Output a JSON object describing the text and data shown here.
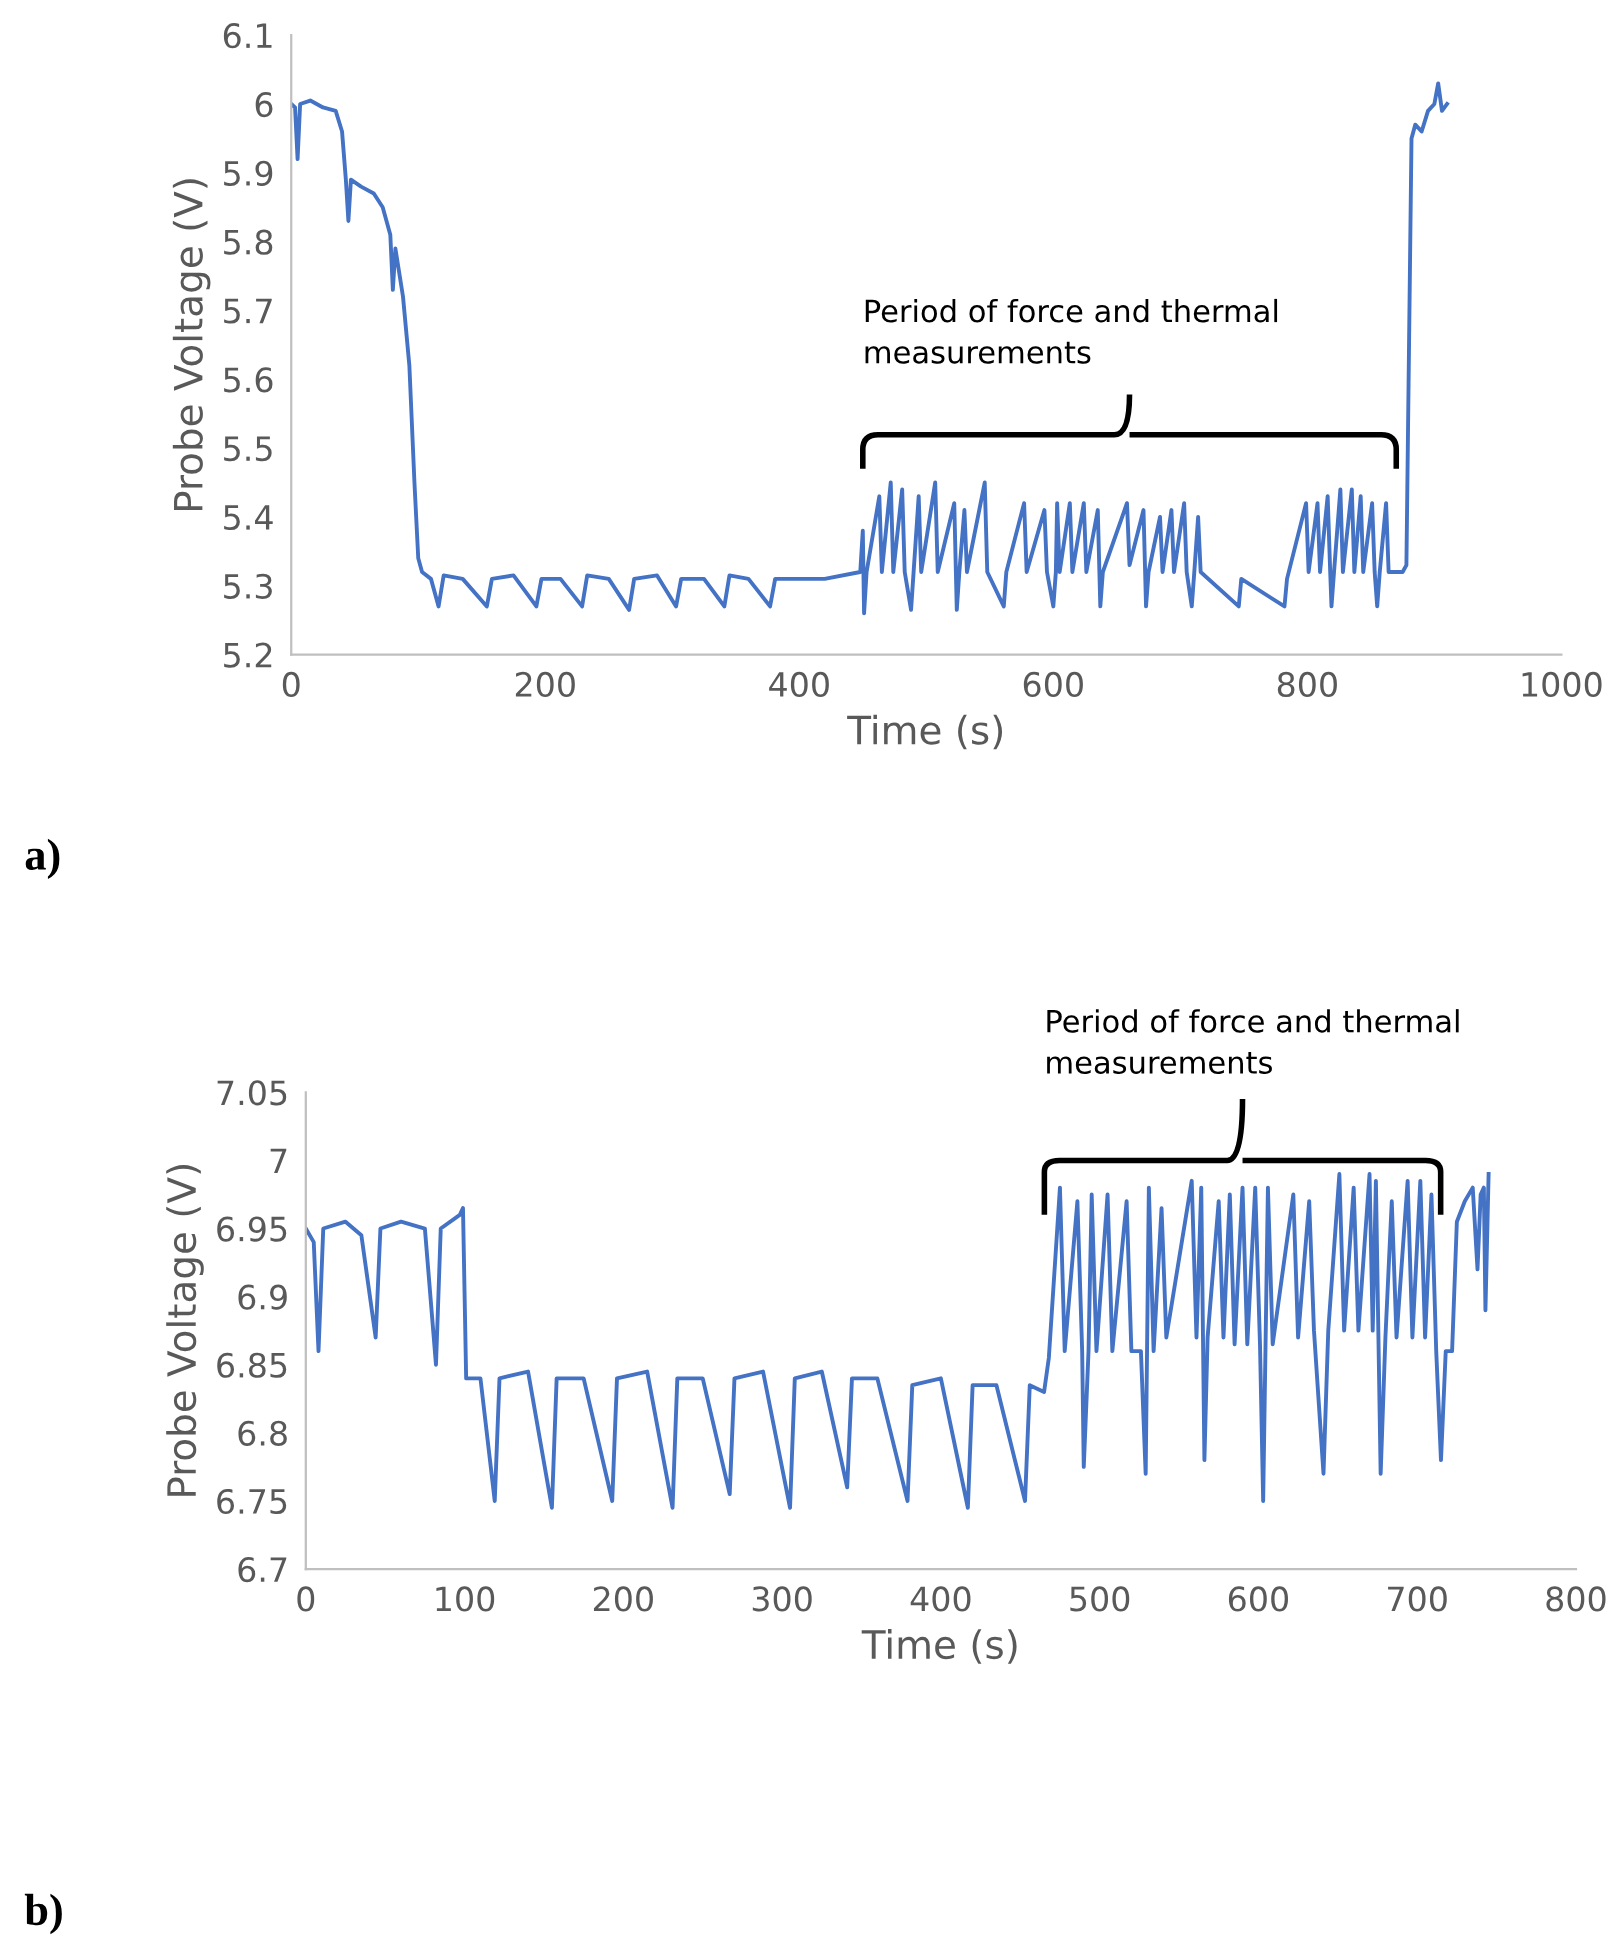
{
  "chart_data": [
    {
      "type": "line",
      "xlabel": "Time (s)",
      "ylabel": "Probe Voltage (V)",
      "xlim": [
        0,
        1000
      ],
      "xticks": [
        0,
        200,
        400,
        600,
        800,
        1000
      ],
      "ylim": [
        5.2,
        6.1
      ],
      "yticks": [
        {
          "value": 5.2,
          "label": "5.2"
        },
        {
          "value": 5.3,
          "label": "5.3"
        },
        {
          "value": 5.4,
          "label": "5.4"
        },
        {
          "value": 5.5,
          "label": "5.5"
        },
        {
          "value": 5.6,
          "label": "5.6"
        },
        {
          "value": 5.7,
          "label": "5.7"
        },
        {
          "value": 5.8,
          "label": "5.8"
        },
        {
          "value": 5.9,
          "label": "5.9"
        },
        {
          "value": 6.0,
          "label": "6"
        },
        {
          "value": 6.1,
          "label": "6.1"
        }
      ],
      "grid": false,
      "legend": false,
      "annotations": [
        "a)",
        "Period of force and thermal\nmeasurements"
      ],
      "series": [
        {
          "color": "#4472c4",
          "x": [
            0,
            3,
            5,
            7,
            15,
            25,
            35,
            40,
            43,
            45,
            47,
            55,
            65,
            72,
            78,
            80,
            82,
            88,
            93,
            97,
            100,
            103,
            110,
            116,
            120,
            135,
            154,
            158,
            175,
            193,
            197,
            212,
            229,
            233,
            250,
            266,
            270,
            288,
            303,
            307,
            325,
            341,
            345,
            360,
            377,
            381,
            420,
            448,
            450,
            451,
            453,
            463,
            465,
            472,
            474,
            481,
            483,
            488,
            490,
            494,
            496,
            507,
            509,
            522,
            524,
            526,
            530,
            532,
            546,
            548,
            561,
            563,
            577,
            579,
            593,
            595,
            600,
            602,
            603,
            605,
            613,
            615,
            624,
            626,
            635,
            637,
            639,
            658,
            660,
            671,
            673,
            675,
            684,
            686,
            693,
            695,
            703,
            705,
            709,
            711,
            714,
            716,
            746,
            748,
            782,
            784,
            799,
            801,
            808,
            810,
            816,
            818,
            819,
            821,
            826,
            828,
            835,
            837,
            842,
            844,
            851,
            853,
            855,
            857,
            862,
            864,
            875,
            878,
            882,
            885,
            890,
            895,
            900,
            903,
            906,
            910
          ],
          "values": [
            6.0,
            5.995,
            5.92,
            6.0,
            6.005,
            5.995,
            5.99,
            5.96,
            5.89,
            5.83,
            5.89,
            5.88,
            5.87,
            5.85,
            5.81,
            5.73,
            5.79,
            5.72,
            5.62,
            5.45,
            5.34,
            5.32,
            5.31,
            5.27,
            5.315,
            5.31,
            5.27,
            5.31,
            5.315,
            5.27,
            5.31,
            5.31,
            5.27,
            5.315,
            5.31,
            5.265,
            5.31,
            5.315,
            5.27,
            5.31,
            5.31,
            5.27,
            5.315,
            5.31,
            5.27,
            5.31,
            5.31,
            5.32,
            5.38,
            5.26,
            5.32,
            5.43,
            5.32,
            5.45,
            5.32,
            5.44,
            5.32,
            5.265,
            5.32,
            5.43,
            5.32,
            5.45,
            5.32,
            5.42,
            5.265,
            5.32,
            5.41,
            5.32,
            5.45,
            5.32,
            5.27,
            5.32,
            5.42,
            5.32,
            5.41,
            5.32,
            5.27,
            5.32,
            5.42,
            5.32,
            5.42,
            5.32,
            5.42,
            5.32,
            5.41,
            5.27,
            5.32,
            5.42,
            5.33,
            5.41,
            5.27,
            5.32,
            5.4,
            5.32,
            5.41,
            5.32,
            5.42,
            5.32,
            5.27,
            5.32,
            5.4,
            5.32,
            5.27,
            5.31,
            5.27,
            5.31,
            5.42,
            5.32,
            5.42,
            5.32,
            5.43,
            5.32,
            5.27,
            5.32,
            5.44,
            5.32,
            5.44,
            5.32,
            5.43,
            5.32,
            5.42,
            5.32,
            5.27,
            5.32,
            5.42,
            5.32,
            5.32,
            5.33,
            5.95,
            5.97,
            5.96,
            5.99,
            6.0,
            6.03,
            5.99,
            6.0
          ]
        }
      ]
    },
    {
      "type": "line",
      "xlabel": "Time (s)",
      "ylabel": "Probe Voltage (V)",
      "xlim": [
        0,
        800
      ],
      "xticks": [
        0,
        100,
        200,
        300,
        400,
        500,
        600,
        700,
        800
      ],
      "ylim": [
        6.7,
        7.05
      ],
      "yticks": [
        {
          "value": 6.7,
          "label": "6.7"
        },
        {
          "value": 6.75,
          "label": "6.75"
        },
        {
          "value": 6.8,
          "label": "6.8"
        },
        {
          "value": 6.85,
          "label": "6.85"
        },
        {
          "value": 6.9,
          "label": "6.9"
        },
        {
          "value": 6.95,
          "label": "6.95"
        },
        {
          "value": 7.0,
          "label": "7"
        },
        {
          "value": 7.05,
          "label": "7.05"
        }
      ],
      "grid": false,
      "legend": false,
      "annotations": [
        "b)",
        "Period of force and thermal\nmeasurements"
      ],
      "series": [
        {
          "color": "#4472c4",
          "x": [
            0,
            5,
            8,
            11,
            25,
            35,
            44,
            47,
            60,
            75,
            82,
            85,
            97,
            99,
            101,
            110,
            119,
            122,
            140,
            155,
            158,
            175,
            193,
            196,
            215,
            231,
            234,
            250,
            267,
            270,
            288,
            305,
            308,
            325,
            341,
            344,
            360,
            379,
            382,
            400,
            417,
            420,
            435,
            453,
            456,
            465,
            468,
            475,
            478,
            486,
            489,
            490,
            493,
            495,
            498,
            505,
            508,
            517,
            520,
            526,
            529,
            531,
            534,
            539,
            542,
            558,
            561,
            564,
            566,
            568,
            575,
            578,
            582,
            585,
            590,
            593,
            598,
            601,
            603,
            606,
            609,
            622,
            625,
            632,
            635,
            641,
            644,
            651,
            654,
            660,
            663,
            670,
            672,
            674,
            677,
            680,
            684,
            687,
            694,
            697,
            702,
            705,
            709,
            712,
            715,
            718,
            722,
            725,
            730,
            735,
            738,
            740,
            742,
            743,
            745
          ],
          "values": [
            6.95,
            6.94,
            6.86,
            6.95,
            6.955,
            6.945,
            6.87,
            6.95,
            6.955,
            6.95,
            6.85,
            6.95,
            6.96,
            6.965,
            6.84,
            6.84,
            6.75,
            6.84,
            6.845,
            6.745,
            6.84,
            6.84,
            6.75,
            6.84,
            6.845,
            6.745,
            6.84,
            6.84,
            6.755,
            6.84,
            6.845,
            6.745,
            6.84,
            6.845,
            6.76,
            6.84,
            6.84,
            6.75,
            6.835,
            6.84,
            6.745,
            6.835,
            6.835,
            6.75,
            6.835,
            6.83,
            6.855,
            6.98,
            6.86,
            6.97,
            6.86,
            6.775,
            6.86,
            6.975,
            6.86,
            6.975,
            6.86,
            6.97,
            6.86,
            6.86,
            6.77,
            6.98,
            6.86,
            6.965,
            6.87,
            6.985,
            6.87,
            6.98,
            6.78,
            6.87,
            6.97,
            6.87,
            6.975,
            6.865,
            6.98,
            6.865,
            6.98,
            6.865,
            6.75,
            6.98,
            6.865,
            6.975,
            6.87,
            6.97,
            6.875,
            6.77,
            6.875,
            6.99,
            6.875,
            6.98,
            6.875,
            6.99,
            6.875,
            6.985,
            6.77,
            6.87,
            6.97,
            6.87,
            6.985,
            6.87,
            6.985,
            6.87,
            6.975,
            6.86,
            6.78,
            6.86,
            6.86,
            6.955,
            6.97,
            6.98,
            6.92,
            6.975,
            6.98,
            6.89,
            6.99
          ]
        }
      ]
    }
  ]
}
